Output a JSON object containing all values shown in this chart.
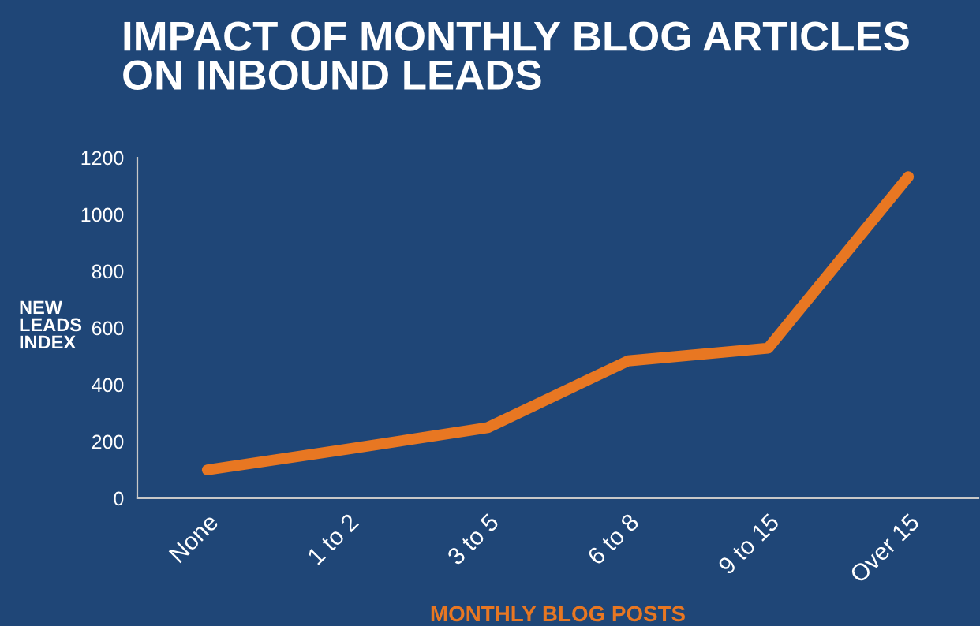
{
  "chart_data": {
    "type": "line",
    "title": "IMPACT OF MONTHLY BLOG ARTICLES\nON INBOUND LEADS",
    "xlabel": "MONTHLY BLOG POSTS",
    "ylabel": "NEW\nLEADS\nINDEX",
    "categories": [
      "None",
      "1 to 2",
      "3 to 5",
      "6 to 8",
      "9 to 15",
      "Over 15"
    ],
    "series": [
      {
        "color": "#e87722",
        "values": [
          100,
          173,
          249,
          484,
          529,
          1133
        ]
      }
    ],
    "ylim": [
      0,
      1200
    ],
    "yticks": [
      0,
      200,
      400,
      600,
      800,
      1000,
      1200
    ],
    "grid": false,
    "legend": false,
    "marker": "none",
    "line_style": "solid"
  }
}
